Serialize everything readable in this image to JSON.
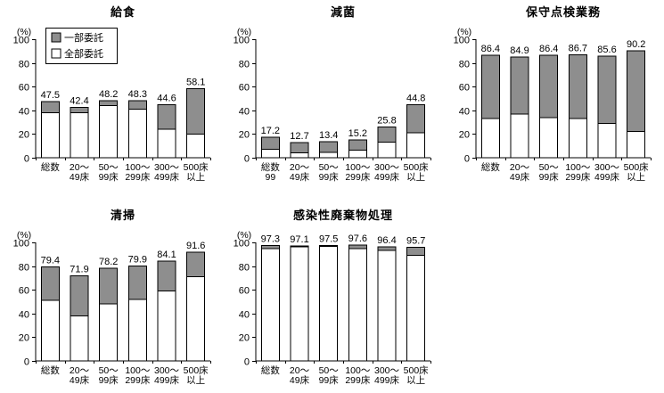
{
  "colors": {
    "partial": "#8e8e8e",
    "full": "#ffffff",
    "axis": "#000000",
    "background": "#ffffff"
  },
  "legend": {
    "items": [
      {
        "key": "partial",
        "label": "一部委託"
      },
      {
        "key": "full",
        "label": "全部委託"
      }
    ]
  },
  "chart_data": [
    {
      "id": "kyushoku",
      "type": "bar",
      "stacked": true,
      "title": "給食",
      "unit_label": "(%)",
      "ylim": [
        0,
        100
      ],
      "yticks": [
        0,
        20,
        40,
        60,
        80,
        100
      ],
      "categories": [
        [
          "総数"
        ],
        [
          "20〜",
          "49床"
        ],
        [
          "50〜",
          "99床"
        ],
        [
          "100〜",
          "299床"
        ],
        [
          "300〜",
          "499床"
        ],
        [
          "500床",
          "以上"
        ]
      ],
      "series": [
        {
          "name": "全部委託",
          "color": "#ffffff",
          "values": [
            38,
            38,
            44,
            41,
            24,
            20
          ]
        },
        {
          "name": "一部委託",
          "color": "#8e8e8e",
          "values": [
            9.5,
            4.4,
            4.2,
            7.3,
            20.6,
            38.1
          ]
        }
      ],
      "totals": [
        47.5,
        42.4,
        48.2,
        48.3,
        44.6,
        58.1
      ],
      "show_legend": true,
      "legend_position": "top-left-inside"
    },
    {
      "id": "genkin",
      "type": "bar",
      "stacked": true,
      "title": "減菌",
      "unit_label": "(%)",
      "ylim": [
        0,
        100
      ],
      "yticks": [
        0,
        20,
        40,
        60,
        80,
        100
      ],
      "categories": [
        [
          "総数",
          "99"
        ],
        [
          "20〜",
          "49床"
        ],
        [
          "50〜",
          "99床"
        ],
        [
          "100〜",
          "299床"
        ],
        [
          "300〜",
          "499床"
        ],
        [
          "500床",
          "以上"
        ]
      ],
      "series": [
        {
          "name": "全部委託",
          "color": "#ffffff",
          "values": [
            7,
            4,
            4.5,
            6.5,
            13,
            21
          ]
        },
        {
          "name": "一部委託",
          "color": "#8e8e8e",
          "values": [
            10.2,
            8.7,
            8.9,
            8.7,
            12.8,
            23.8
          ]
        }
      ],
      "totals": [
        17.2,
        12.7,
        13.4,
        15.2,
        25.8,
        44.8
      ],
      "show_legend": false
    },
    {
      "id": "hoshutenken",
      "type": "bar",
      "stacked": true,
      "title": "保守点検業務",
      "unit_label": "(%)",
      "ylim": [
        0,
        100
      ],
      "yticks": [
        0,
        20,
        40,
        60,
        80,
        100
      ],
      "categories": [
        [
          "総数"
        ],
        [
          "20〜",
          "49床"
        ],
        [
          "50〜",
          "99床"
        ],
        [
          "100〜",
          "299床"
        ],
        [
          "300〜",
          "499床"
        ],
        [
          "500床",
          "以上"
        ]
      ],
      "series": [
        {
          "name": "全部委託",
          "color": "#ffffff",
          "values": [
            33,
            37,
            34,
            33,
            29,
            22
          ]
        },
        {
          "name": "一部委託",
          "color": "#8e8e8e",
          "values": [
            53.4,
            47.9,
            52.4,
            53.7,
            56.6,
            68.2
          ]
        }
      ],
      "totals": [
        86.4,
        84.9,
        86.4,
        86.7,
        85.6,
        90.2
      ],
      "show_legend": false
    },
    {
      "id": "seiso",
      "type": "bar",
      "stacked": true,
      "title": "清掃",
      "unit_label": "(%)",
      "ylim": [
        0,
        100
      ],
      "yticks": [
        0,
        20,
        40,
        60,
        80,
        100
      ],
      "categories": [
        [
          "総数"
        ],
        [
          "20〜",
          "49床"
        ],
        [
          "50〜",
          "99床"
        ],
        [
          "100〜",
          "299床"
        ],
        [
          "300〜",
          "499床"
        ],
        [
          "500床",
          "以上"
        ]
      ],
      "series": [
        {
          "name": "全部委託",
          "color": "#ffffff",
          "values": [
            51,
            38,
            48,
            52,
            59,
            71
          ]
        },
        {
          "name": "一部委託",
          "color": "#8e8e8e",
          "values": [
            28.4,
            33.9,
            30.2,
            27.9,
            25.1,
            20.6
          ]
        }
      ],
      "totals": [
        79.4,
        71.9,
        78.2,
        79.9,
        84.1,
        91.6
      ],
      "show_legend": false
    },
    {
      "id": "kansenseihaikibutsu",
      "type": "bar",
      "stacked": true,
      "title": "感染性廃棄物処理",
      "unit_label": "(%)",
      "ylim": [
        0,
        100
      ],
      "yticks": [
        0,
        20,
        40,
        60,
        80,
        100
      ],
      "categories": [
        [
          "総数"
        ],
        [
          "20〜",
          "49床"
        ],
        [
          "50〜",
          "99床"
        ],
        [
          "100〜",
          "299床"
        ],
        [
          "300〜",
          "499床"
        ],
        [
          "500床",
          "以上"
        ]
      ],
      "series": [
        {
          "name": "全部委託",
          "color": "#ffffff",
          "values": [
            94.8,
            96.1,
            96.7,
            94.6,
            93.4,
            89.2
          ]
        },
        {
          "name": "一部委託",
          "color": "#8e8e8e",
          "values": [
            2.5,
            1.0,
            0.8,
            3.0,
            3.0,
            6.5
          ]
        }
      ],
      "totals": [
        97.3,
        97.1,
        97.5,
        97.6,
        96.4,
        95.7
      ],
      "show_legend": false
    }
  ]
}
